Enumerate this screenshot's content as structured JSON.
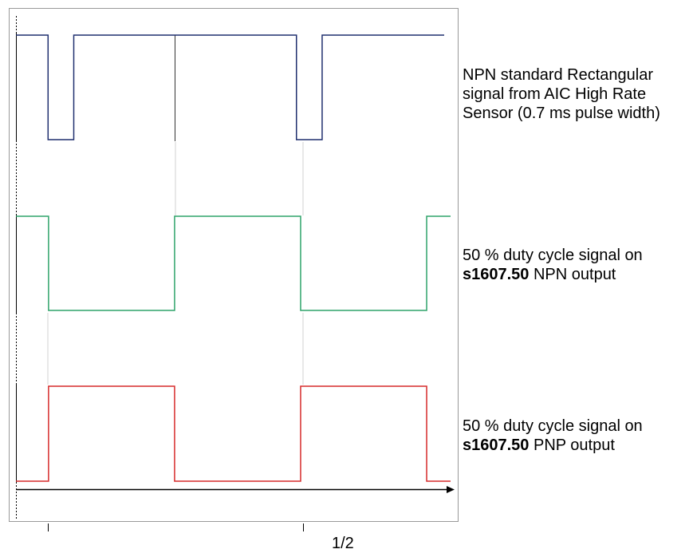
{
  "labels": {
    "npn_standard": "NPN standard Rectangular signal from AIC High Rate Sensor (0.7 ms pulse width)",
    "npn_output_prefix": "50 % duty cycle  signal on",
    "npn_output_model": "s1607.50",
    "npn_output_suffix": " NPN output",
    "pnp_output_prefix": "50 % duty cycle  signal on",
    "pnp_output_model": "s1607.50",
    "pnp_output_suffix": " PNP output",
    "scale_fraction": "1/2"
  },
  "colors": {
    "npn_standard": "#1f2f6e",
    "npn_output": "#2ea36a",
    "pnp_output": "#d62a2a",
    "frame": "#999999",
    "axis": "#000000",
    "divider": "#333333"
  },
  "waveforms": [
    {
      "name": "npn-standard-signal",
      "color_key": "npn_standard",
      "description_key": "npn_standard",
      "levels": [
        1,
        0,
        1,
        0,
        1
      ],
      "edges": [
        0.0,
        0.075,
        0.135,
        0.655,
        0.715,
        1.0
      ]
    },
    {
      "name": "npn-output-signal",
      "color_key": "npn_output",
      "levels": [
        1,
        0,
        1,
        0,
        1
      ],
      "edges": [
        0.0,
        0.075,
        0.365,
        0.655,
        0.945,
        1.0
      ]
    },
    {
      "name": "pnp-output-signal",
      "color_key": "pnp_output",
      "levels": [
        0,
        1,
        0,
        1,
        0
      ],
      "edges": [
        0.0,
        0.075,
        0.365,
        0.655,
        0.945,
        1.0
      ]
    }
  ]
}
